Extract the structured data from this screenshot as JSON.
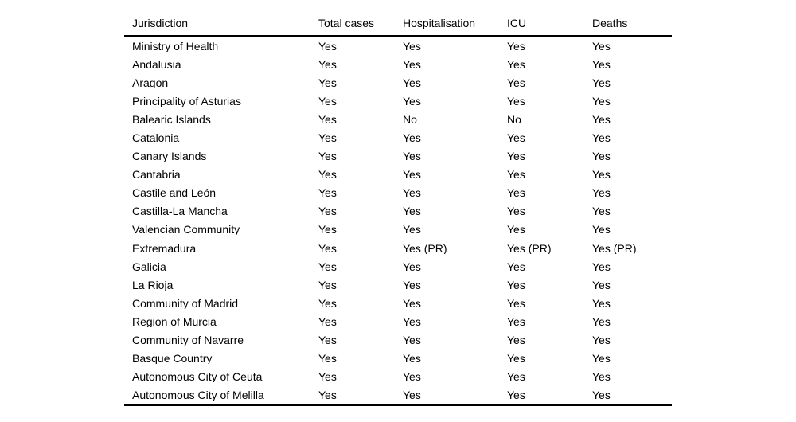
{
  "colors": {
    "background": "#ffffff",
    "text": "#000000",
    "rule": "#000000"
  },
  "table": {
    "columns": [
      "Jurisdiction",
      "Total cases",
      "Hospitalisation",
      "ICU",
      "Deaths"
    ],
    "rows": [
      [
        "Ministry of Health",
        "Yes",
        "Yes",
        "Yes",
        "Yes"
      ],
      [
        "Andalusia",
        "Yes",
        "Yes",
        "Yes",
        "Yes"
      ],
      [
        "Aragon",
        "Yes",
        "Yes",
        "Yes",
        "Yes"
      ],
      [
        "Principality of Asturias",
        "Yes",
        "Yes",
        "Yes",
        "Yes"
      ],
      [
        "Balearic Islands",
        "Yes",
        "No",
        "No",
        "Yes"
      ],
      [
        "Catalonia",
        "Yes",
        "Yes",
        "Yes",
        "Yes"
      ],
      [
        "Canary Islands",
        "Yes",
        "Yes",
        "Yes",
        "Yes"
      ],
      [
        "Cantabria",
        "Yes",
        "Yes",
        "Yes",
        "Yes"
      ],
      [
        "Castile and León",
        "Yes",
        "Yes",
        "Yes",
        "Yes"
      ],
      [
        "Castilla-La Mancha",
        "Yes",
        "Yes",
        "Yes",
        "Yes"
      ],
      [
        "Valencian Community",
        "Yes",
        "Yes",
        "Yes",
        "Yes"
      ],
      [
        "Extremadura",
        "Yes",
        "Yes (PR)",
        "Yes (PR)",
        "Yes (PR)"
      ],
      [
        "Galicia",
        "Yes",
        "Yes",
        "Yes",
        "Yes"
      ],
      [
        "La Rioja",
        "Yes",
        "Yes",
        "Yes",
        "Yes"
      ],
      [
        "Community of Madrid",
        "Yes",
        "Yes",
        "Yes",
        "Yes"
      ],
      [
        "Region of Murcia",
        "Yes",
        "Yes",
        "Yes",
        "Yes"
      ],
      [
        "Community of Navarre",
        "Yes",
        "Yes",
        "Yes",
        "Yes"
      ],
      [
        "Basque Country",
        "Yes",
        "Yes",
        "Yes",
        "Yes"
      ],
      [
        "Autonomous City of Ceuta",
        "Yes",
        "Yes",
        "Yes",
        "Yes"
      ],
      [
        "Autonomous City of Melilla",
        "Yes",
        "Yes",
        "Yes",
        "Yes"
      ]
    ]
  }
}
